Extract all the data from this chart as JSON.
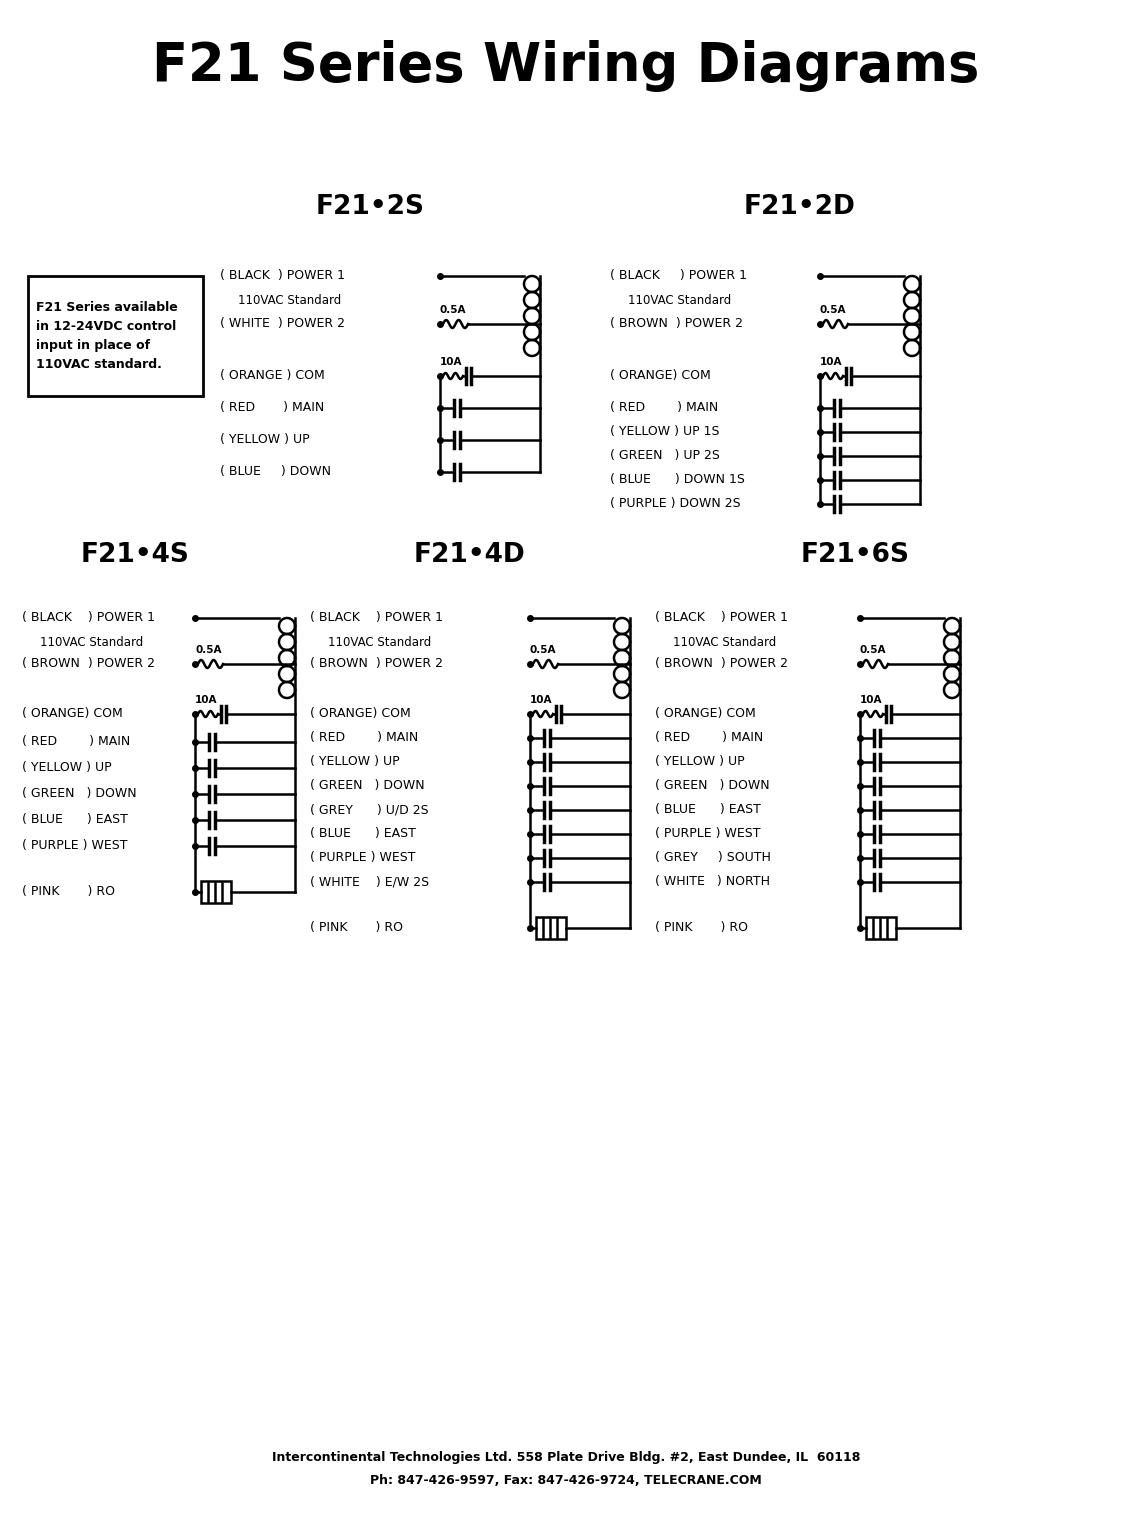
{
  "title": "F21 Series Wiring Diagrams",
  "title_fontsize": 36,
  "footer_line1": "Intercontinental Technologies Ltd. 558 Plate Drive Bldg. #2, East Dundee, IL  60118",
  "footer_line2": "Ph: 847-426-9597, Fax: 847-426-9724, TELECRANE.COM",
  "notice_text": "F21 Series available\nin 12-24VDC control\ninput in place of\n110VAC standard.",
  "bg_color": "#ffffff",
  "line_color": "#000000"
}
